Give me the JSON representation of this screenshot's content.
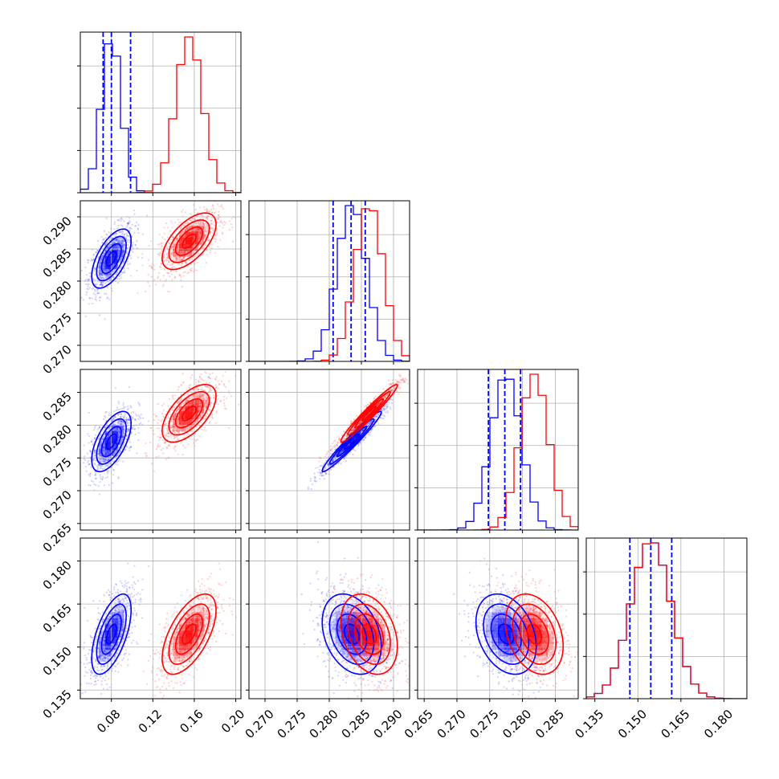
{
  "chart_data": {
    "type": "corner",
    "series": [
      {
        "name": "",
        "color": "#0000ff",
        "mean": [
          0.08,
          0.2835,
          0.2775,
          0.1545
        ],
        "sd": [
          0.0095,
          0.0023,
          0.0023,
          0.007
        ],
        "corr": [
          [
            1,
            0.6,
            0.6,
            0.6
          ],
          [
            0.6,
            1,
            0.97,
            -0.3
          ],
          [
            0.6,
            0.97,
            1,
            -0.3
          ],
          [
            0.6,
            -0.3,
            -0.3,
            1
          ]
        ],
        "quantile_lines": [
          [
            0.072,
            0.08,
            0.0985
          ],
          [
            0.2806,
            0.2834,
            0.2856
          ],
          [
            0.2748,
            0.2773,
            0.2797
          ],
          [
            0.1472,
            0.1545,
            0.1618
          ]
        ]
      },
      {
        "name": "",
        "color": "#ff0000",
        "mean": [
          0.155,
          0.2862,
          0.2818,
          0.1545
        ],
        "sd": [
          0.013,
          0.0022,
          0.0022,
          0.007
        ],
        "corr": [
          [
            1,
            0.6,
            0.6,
            0.6
          ],
          [
            0.6,
            1,
            0.97,
            -0.3
          ],
          [
            0.6,
            0.97,
            1,
            -0.3
          ],
          [
            0.6,
            -0.3,
            -0.3,
            1
          ]
        ]
      }
    ],
    "ranges": [
      [
        0.05,
        0.205
      ],
      [
        0.2675,
        0.2925
      ],
      [
        0.264,
        0.2885
      ],
      [
        0.132,
        0.188
      ]
    ],
    "x_ticks": [
      [
        "0.08",
        "0.12",
        "0.16",
        "0.20"
      ],
      [
        "0.270",
        "0.275",
        "0.280",
        "0.285",
        "0.290"
      ],
      [
        "0.265",
        "0.270",
        "0.275",
        "0.280",
        "0.285"
      ],
      [
        "0.135",
        "0.150",
        "0.165",
        "0.180"
      ]
    ],
    "y_ticks": [
      null,
      [
        "0.270",
        "0.275",
        "0.280",
        "0.285",
        "0.290"
      ],
      [
        "0.265",
        "0.270",
        "0.275",
        "0.280",
        "0.285"
      ],
      [
        "0.135",
        "0.150",
        "0.165",
        "0.180"
      ]
    ],
    "grid": true,
    "contour_levels_sigma": [
      0.5,
      1.0,
      1.5,
      2.0
    ]
  }
}
